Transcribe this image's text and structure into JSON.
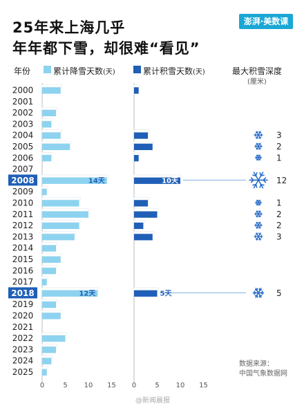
{
  "title_line1": "25年来上海几乎",
  "title_line2": "年年都下雪，却很难“看见”",
  "logo_text": "澎湃·美数课",
  "header": {
    "year": "年份",
    "snowfall": "累计降雪天数",
    "snowfall_unit": "(天)",
    "snowcover": "累计积雪天数",
    "snowcover_unit": "(天)",
    "depth": "最大积雪深度",
    "depth_unit": "(厘米)"
  },
  "source_label": "数据来源：",
  "source_value": "中国气象数据网",
  "watermark": "@新闻晨报",
  "colors": {
    "snowfall": "#8dd3ef",
    "snowcover": "#1f5fb7",
    "highlight_year_bg": "#1f5fb7",
    "snowflake": "#2a6ec8"
  },
  "chart_data": {
    "type": "bar",
    "categories": [
      "2000",
      "2001",
      "2002",
      "2003",
      "2004",
      "2005",
      "2006",
      "2007",
      "2008",
      "2009",
      "2010",
      "2011",
      "2012",
      "2013",
      "2014",
      "2015",
      "2016",
      "2017",
      "2018",
      "2019",
      "2020",
      "2021",
      "2022",
      "2023",
      "2024",
      "2025"
    ],
    "highlight_years": [
      "2008",
      "2018"
    ],
    "series": [
      {
        "name": "累计降雪天数",
        "values": [
          4,
          0,
          3,
          2,
          4,
          6,
          2,
          0,
          14,
          1,
          8,
          10,
          8,
          7,
          3,
          4,
          3,
          1,
          12,
          3,
          4,
          0,
          5,
          3,
          2,
          1
        ],
        "xlim": [
          0,
          15
        ],
        "ticks": [
          0,
          5,
          10,
          15
        ],
        "data_labels": {
          "8": "14天",
          "18": "12天"
        }
      },
      {
        "name": "累计积雪天数",
        "values": [
          1,
          0,
          0,
          0,
          3,
          4,
          1,
          0,
          10,
          0,
          3,
          5,
          2,
          4,
          0,
          0,
          0,
          0,
          5,
          0,
          0,
          0,
          0,
          0,
          0,
          0
        ],
        "xlim": [
          0,
          15
        ],
        "ticks": [
          0,
          5,
          10,
          15
        ],
        "data_labels": {
          "8": "10天",
          "18": "5天"
        }
      },
      {
        "name": "最大积雪深度",
        "values": [
          null,
          null,
          null,
          null,
          3,
          2,
          1,
          null,
          12,
          null,
          1,
          2,
          2,
          3,
          null,
          null,
          null,
          null,
          5,
          null,
          null,
          null,
          null,
          null,
          null,
          null
        ]
      }
    ]
  }
}
